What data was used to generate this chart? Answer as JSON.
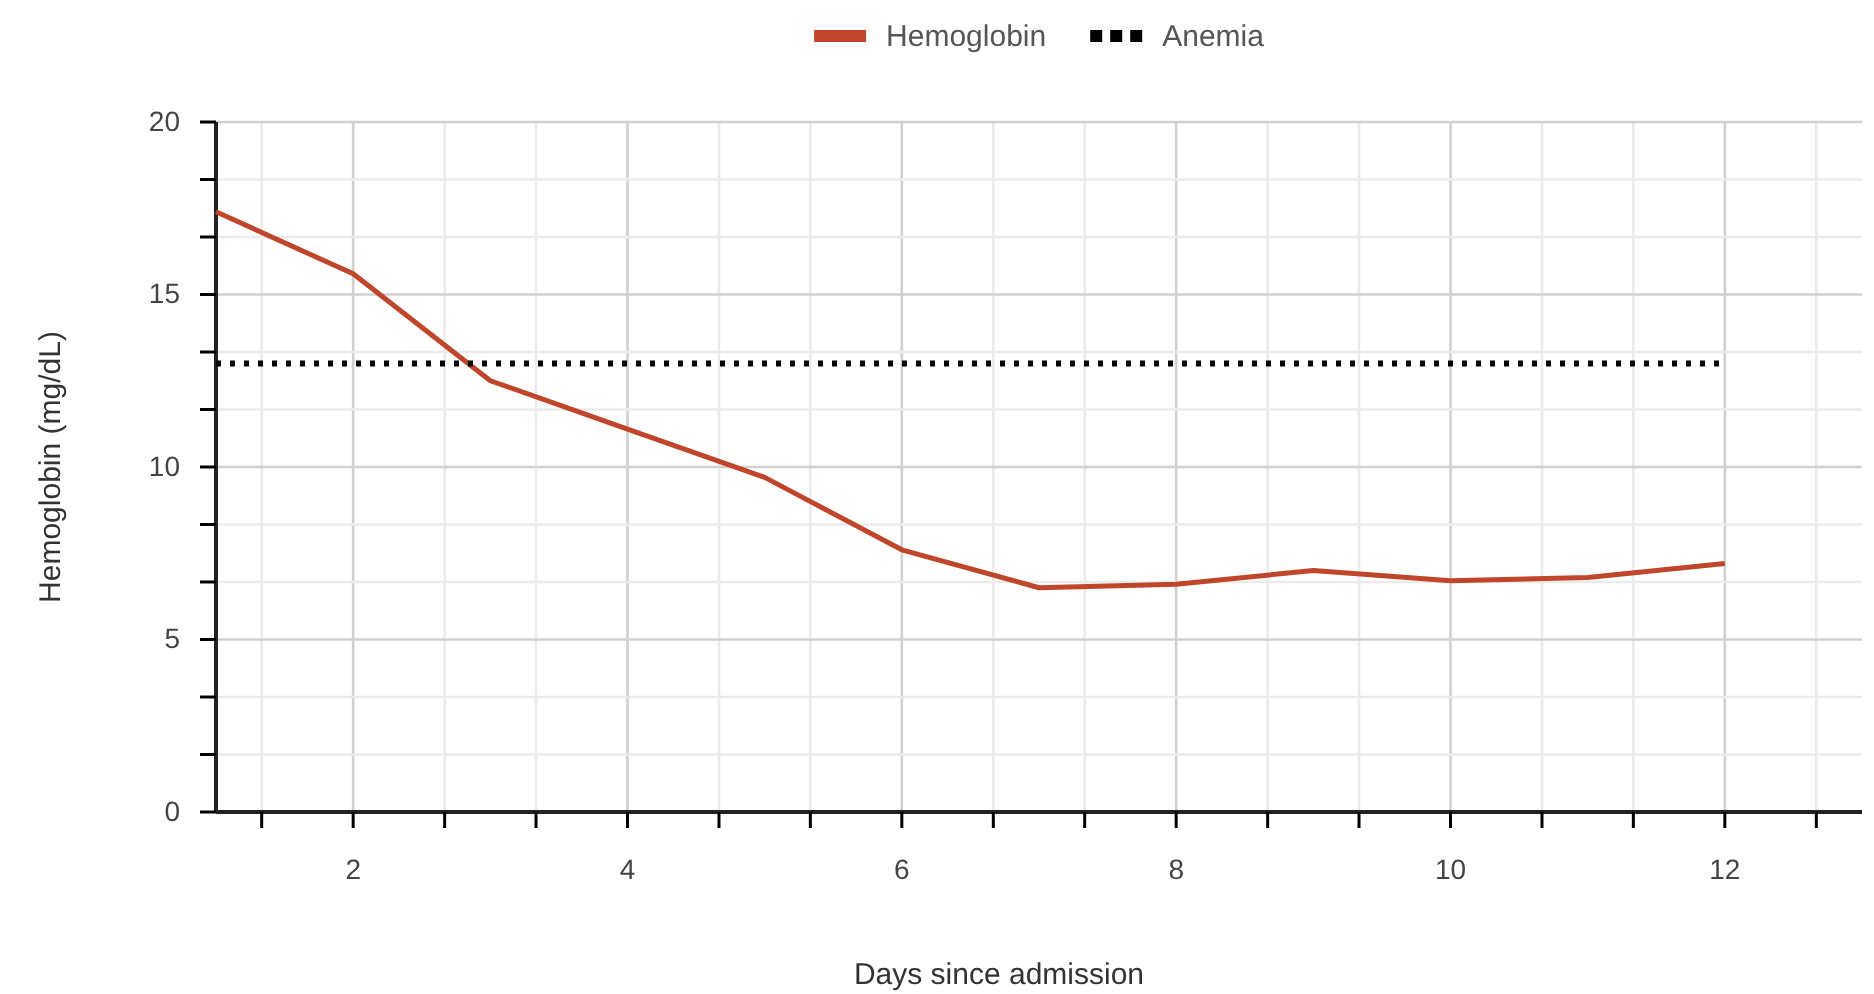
{
  "chart_data": {
    "type": "line",
    "xlabel": "Days since admission",
    "ylabel": "Hemoglobin (mg/dL)",
    "x": [
      1,
      2,
      3,
      4,
      5,
      6,
      7,
      8,
      9,
      10,
      11,
      12
    ],
    "series": [
      {
        "name": "Hemoglobin",
        "color": "#c0462b",
        "values": [
          17.4,
          15.6,
          12.5,
          11.1,
          9.7,
          7.6,
          6.5,
          6.6,
          7.0,
          6.7,
          6.8,
          7.2
        ],
        "line_style": "solid"
      },
      {
        "name": "Anemia",
        "color": "#000000",
        "values": [
          13,
          13,
          13,
          13,
          13,
          13,
          13,
          13,
          13,
          13,
          13,
          13
        ],
        "line_style": "dotted"
      }
    ],
    "xlim": [
      1,
      13
    ],
    "xticks": [
      {
        "value": 1.333,
        "label": null
      },
      2,
      {
        "value": 2.667,
        "label": null
      },
      {
        "value": 3.333,
        "label": null
      },
      4,
      {
        "value": 4.667,
        "label": null
      },
      {
        "value": 5.333,
        "label": null
      },
      6,
      {
        "value": 6.667,
        "label": null
      },
      {
        "value": 7.333,
        "label": null
      },
      8,
      {
        "value": 8.667,
        "label": null
      },
      {
        "value": 9.333,
        "label": null
      },
      10,
      {
        "value": 10.667,
        "label": null
      },
      {
        "value": 11.333,
        "label": null
      },
      12,
      {
        "value": 12.667,
        "label": null
      }
    ],
    "ylim": [
      0,
      20
    ],
    "yticks": [
      0,
      {
        "value": 1.667,
        "label": null
      },
      {
        "value": 3.333,
        "label": null
      },
      5,
      {
        "value": 6.667,
        "label": null
      },
      {
        "value": 8.333,
        "label": null
      },
      10,
      {
        "value": 11.667,
        "label": null
      },
      {
        "value": 13.333,
        "label": null
      },
      15,
      {
        "value": 16.667,
        "label": null
      },
      {
        "value": 18.333,
        "label": null
      },
      20
    ],
    "grid": true,
    "legend": "top",
    "marker": "none"
  }
}
